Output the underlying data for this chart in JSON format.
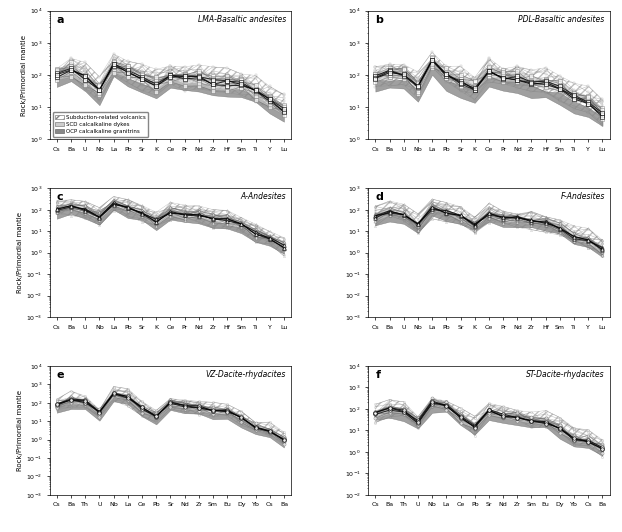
{
  "elements_top": [
    "Cs",
    "Ba",
    "U",
    "Nb",
    "La",
    "Pb",
    "Sr",
    "K",
    "Ce",
    "Pr",
    "Nd",
    "Zr",
    "Hf",
    "Sm",
    "Ti",
    "Y",
    "Lu"
  ],
  "elements_bottom": [
    "Cs",
    "Ba",
    "Th",
    "U",
    "Nb",
    "La",
    "Ce",
    "Pb",
    "Sr",
    "Nd",
    "Zr",
    "Sm",
    "Eu",
    "Dy",
    "Yb"
  ],
  "panels": [
    {
      "label": "a",
      "title": "LMA-Basaltic andesites",
      "marker": "s",
      "ylim": [
        1,
        10000
      ],
      "row": 0
    },
    {
      "label": "b",
      "title": "PDL-Basaltic andesites",
      "marker": "s",
      "ylim": [
        1,
        10000
      ],
      "row": 0
    },
    {
      "label": "c",
      "title": "A-Andesites",
      "marker": "^",
      "ylim": [
        0.001,
        1000
      ],
      "row": 1
    },
    {
      "label": "d",
      "title": "F-Andesites",
      "marker": "^",
      "ylim": [
        0.001,
        1000
      ],
      "row": 1
    },
    {
      "label": "e",
      "title": "VZ-Dacite-rhydacites",
      "marker": "o",
      "ylim": [
        0.001,
        10000
      ],
      "row": 2
    },
    {
      "label": "f",
      "title": "ST-Dacite-rhydacites",
      "marker": "o",
      "ylim": [
        0.01,
        10000
      ],
      "row": 2
    }
  ],
  "bases": [
    [
      100,
      150,
      80,
      30,
      200,
      120,
      80,
      50,
      100,
      80,
      80,
      60,
      55,
      50,
      30,
      15,
      8
    ],
    [
      80,
      120,
      100,
      40,
      250,
      100,
      60,
      40,
      120,
      90,
      80,
      60,
      55,
      40,
      20,
      15,
      6
    ],
    [
      100,
      150,
      100,
      50,
      200,
      120,
      70,
      30,
      80,
      60,
      60,
      40,
      35,
      20,
      8,
      5,
      2
    ],
    [
      50,
      80,
      60,
      20,
      120,
      80,
      50,
      20,
      60,
      40,
      40,
      30,
      25,
      15,
      5,
      4,
      1.5
    ],
    [
      80,
      150,
      120,
      30,
      300,
      200,
      50,
      20,
      100,
      70,
      60,
      40,
      35,
      15,
      5,
      3,
      1
    ],
    [
      60,
      100,
      80,
      25,
      200,
      150,
      40,
      15,
      80,
      50,
      45,
      30,
      25,
      12,
      4,
      3,
      1.5
    ]
  ],
  "scd_color": "#cccccc",
  "ocp_color": "#888888",
  "sub_edge": "#555555",
  "ylabel": "Rock/Primordial mantle",
  "legend_labels": [
    "Subduction-related volcanics",
    "SCD calcalkaline dykes",
    "OCP calcalkaline granitrins"
  ]
}
